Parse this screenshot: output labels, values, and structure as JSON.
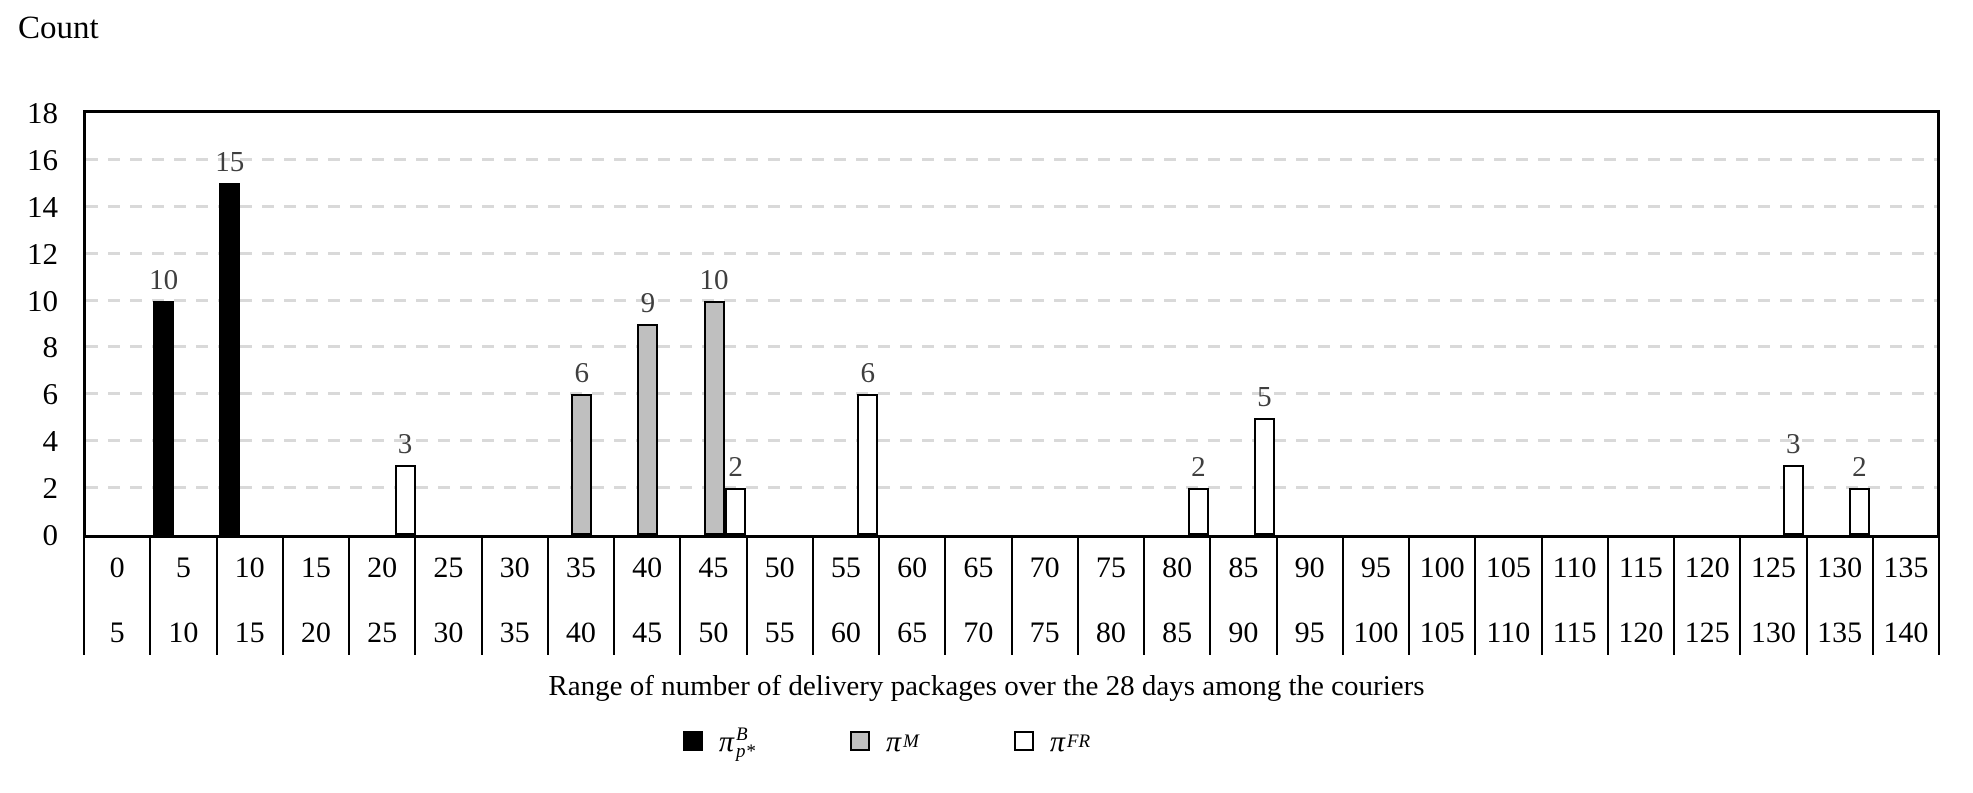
{
  "page": {
    "count_axis_title": "Count",
    "x_axis_title": "Range of number of delivery packages over the 28 days among the couriers"
  },
  "colors": {
    "frame": "#000000",
    "grid": "#d9d9d9",
    "value_label": "#3f3f3f",
    "bar_border": "#000000"
  },
  "chart_data": {
    "type": "bar",
    "title": "Count",
    "xlabel": "Range of number of delivery packages over the 28 days among the couriers",
    "ylabel": "Count",
    "ylim": [
      0,
      18
    ],
    "yticks": [
      0,
      2,
      4,
      6,
      8,
      10,
      12,
      14,
      16,
      18
    ],
    "grid": "horizontal dashed every 2 units",
    "legend_position": "bottom-center",
    "bin_size": 5,
    "bin_labels_top": [
      "0",
      "5",
      "10",
      "15",
      "20",
      "25",
      "30",
      "35",
      "40",
      "45",
      "50",
      "55",
      "60",
      "65",
      "70",
      "75",
      "80",
      "85",
      "90",
      "95",
      "100",
      "105",
      "110",
      "115",
      "120",
      "125",
      "130",
      "135"
    ],
    "bin_labels_bottom": [
      "5",
      "10",
      "15",
      "20",
      "25",
      "30",
      "35",
      "40",
      "45",
      "50",
      "55",
      "60",
      "65",
      "70",
      "75",
      "80",
      "85",
      "90",
      "95",
      "100",
      "105",
      "110",
      "115",
      "120",
      "125",
      "130",
      "135",
      "140"
    ],
    "series": [
      {
        "name": "pi-B-pstar",
        "legend_base": "π",
        "legend_sup": "B",
        "legend_sub": "p*",
        "fill": "#000000",
        "align_in_bin": "left",
        "values": [
          0,
          10,
          15,
          0,
          0,
          0,
          0,
          0,
          0,
          0,
          0,
          0,
          0,
          0,
          0,
          0,
          0,
          0,
          0,
          0,
          0,
          0,
          0,
          0,
          0,
          0,
          0,
          0
        ]
      },
      {
        "name": "pi-M",
        "legend_base": "π",
        "legend_sup": "M",
        "legend_sub": "",
        "fill": "#bfbfbf",
        "align_in_bin": "center",
        "values": [
          0,
          0,
          0,
          0,
          0,
          0,
          0,
          6,
          9,
          10,
          0,
          0,
          0,
          0,
          0,
          0,
          0,
          0,
          0,
          0,
          0,
          0,
          0,
          0,
          0,
          0,
          0,
          0
        ]
      },
      {
        "name": "pi-FR",
        "legend_base": "π",
        "legend_sup": "FR",
        "legend_sub": "",
        "fill": "#ffffff",
        "align_in_bin": "right",
        "values": [
          0,
          0,
          0,
          0,
          3,
          0,
          0,
          0,
          0,
          2,
          0,
          6,
          0,
          0,
          0,
          0,
          2,
          5,
          0,
          0,
          0,
          0,
          0,
          0,
          0,
          3,
          2,
          0
        ]
      }
    ]
  }
}
